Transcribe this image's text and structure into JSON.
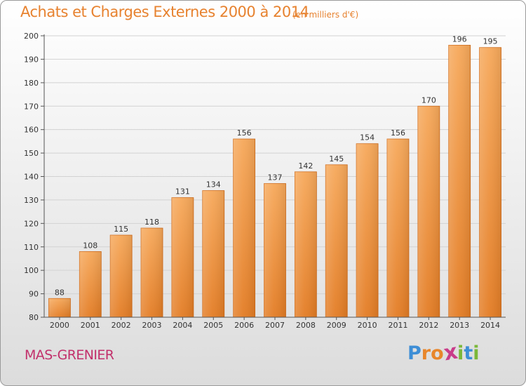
{
  "header": {
    "title": "Achats et Charges Externes 2000 à 2014",
    "unit": "(en milliers d'€)"
  },
  "footer": {
    "commune": "MAS-GRENIER",
    "logo": [
      "P",
      "r",
      "o",
      "x",
      "i",
      "t",
      "i"
    ],
    "logo_colors": [
      "#3d8ed6",
      "#e8862b",
      "#e8862b",
      "#c93c8a",
      "#7bb83a",
      "#3d8ed6",
      "#7bb83a"
    ]
  },
  "chart_data": {
    "type": "bar",
    "title": "Achats et Charges Externes 2000 à 2014",
    "subtitle": "(en milliers d'€)",
    "categories": [
      "2000",
      "2001",
      "2002",
      "2003",
      "2004",
      "2005",
      "2006",
      "2007",
      "2008",
      "2009",
      "2010",
      "2011",
      "2012",
      "2013",
      "2014"
    ],
    "values": [
      88,
      108,
      115,
      118,
      131,
      134,
      156,
      137,
      142,
      145,
      154,
      156,
      170,
      196,
      195
    ],
    "ylim": [
      80,
      200
    ],
    "yticks": [
      80,
      90,
      100,
      110,
      120,
      130,
      140,
      150,
      160,
      170,
      180,
      190,
      200
    ],
    "grid": true,
    "bar_color_top": "#f6a85a",
    "bar_color_bottom": "#e37c24",
    "bar_edge": "#d06a18"
  }
}
